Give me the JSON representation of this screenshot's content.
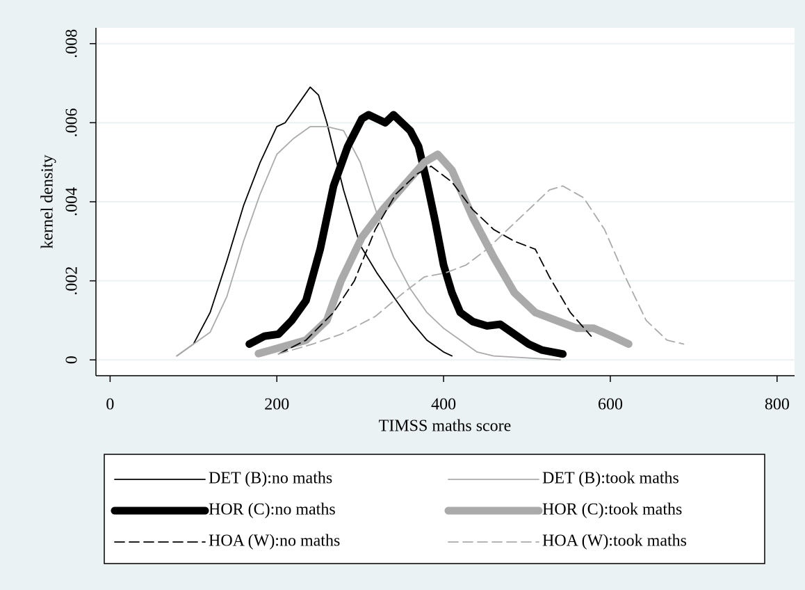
{
  "chart_data": {
    "type": "line",
    "x_label": "TIMSS maths score",
    "y_label": "kernel density",
    "xlim": [
      -17,
      821
    ],
    "ylim": [
      -0.0004,
      0.0084
    ],
    "xticks": [
      0,
      200,
      400,
      600,
      800
    ],
    "yticks": [
      0,
      {
        "value": 0.002,
        "label": ".002"
      },
      {
        "value": 0.004,
        "label": ".004"
      },
      {
        "value": 0.006,
        "label": ".006"
      },
      {
        "value": 0.008,
        "label": ".008"
      }
    ],
    "grid": true,
    "legend": "bottom",
    "series": [
      {
        "name": "DET (B):no maths",
        "color": "#000000",
        "line_style": "solid",
        "line_weight": "thin",
        "x": [
          80,
          100,
          120,
          140,
          160,
          180,
          200,
          210,
          230,
          240,
          250,
          260,
          280,
          300,
          320,
          340,
          360,
          380,
          400,
          410
        ],
        "values": [
          0.0001,
          0.0004,
          0.0012,
          0.0025,
          0.0039,
          0.005,
          0.0059,
          0.006,
          0.0066,
          0.0069,
          0.0067,
          0.006,
          0.0043,
          0.0029,
          0.0022,
          0.0016,
          0.001,
          0.0005,
          0.0002,
          0.0001
        ]
      },
      {
        "name": "DET (B):took maths",
        "color": "#aaaaaa",
        "line_style": "solid",
        "line_weight": "thin",
        "x": [
          80,
          120,
          140,
          160,
          180,
          200,
          220,
          240,
          260,
          280,
          300,
          320,
          340,
          360,
          380,
          400,
          420,
          440,
          460,
          500,
          540
        ],
        "values": [
          0.0001,
          0.0007,
          0.0016,
          0.003,
          0.0042,
          0.0052,
          0.0056,
          0.0059,
          0.0059,
          0.0058,
          0.005,
          0.0037,
          0.0026,
          0.0018,
          0.0012,
          0.0008,
          0.0005,
          0.0002,
          0.0001,
          5e-05,
          0
        ]
      },
      {
        "name": "HOR (C):no maths",
        "color": "#000000",
        "line_style": "solid",
        "line_weight": "thick",
        "x": [
          167,
          185,
          202,
          218,
          235,
          252,
          268,
          285,
          302,
          310,
          320,
          330,
          340,
          350,
          360,
          370,
          380,
          390,
          400,
          410,
          420,
          435,
          452,
          468,
          485,
          502,
          518,
          543
        ],
        "values": [
          0.0004,
          0.0006,
          0.00065,
          0.001,
          0.0015,
          0.0028,
          0.0044,
          0.0054,
          0.0061,
          0.0062,
          0.0061,
          0.006,
          0.0062,
          0.006,
          0.0058,
          0.0054,
          0.0045,
          0.0035,
          0.0024,
          0.0017,
          0.0012,
          0.00097,
          0.00086,
          0.0009,
          0.00065,
          0.0004,
          0.00025,
          0.00015
        ]
      },
      {
        "name": "HOR (C):took maths",
        "color": "#aaaaaa",
        "line_style": "solid",
        "line_weight": "thick",
        "x": [
          178,
          202,
          235,
          260,
          277,
          302,
          327,
          352,
          377,
          393,
          410,
          435,
          460,
          485,
          510,
          535,
          560,
          580,
          602,
          622
        ],
        "values": [
          0.00016,
          0.0003,
          0.0005,
          0.001,
          0.002,
          0.0031,
          0.0038,
          0.0044,
          0.005,
          0.0052,
          0.0048,
          0.0036,
          0.0026,
          0.0017,
          0.0012,
          0.001,
          0.0008,
          0.0008,
          0.0006,
          0.0004
        ]
      },
      {
        "name": "HOA (W):no maths",
        "color": "#000000",
        "line_style": "dashed",
        "line_weight": "thin",
        "x": [
          202,
          235,
          268,
          293,
          318,
          343,
          368,
          385,
          410,
          435,
          460,
          485,
          510,
          527,
          552,
          577
        ],
        "values": [
          0.00015,
          0.0005,
          0.0012,
          0.002,
          0.0033,
          0.0042,
          0.0047,
          0.0049,
          0.0045,
          0.0038,
          0.0033,
          0.003,
          0.0028,
          0.0021,
          0.0012,
          0.0006
        ]
      },
      {
        "name": "HOA (W):took maths",
        "color": "#aaaaaa",
        "line_style": "dashed",
        "line_weight": "thin",
        "x": [
          202,
          243,
          277,
          318,
          352,
          377,
          402,
          427,
          452,
          477,
          502,
          527,
          543,
          568,
          593,
          618,
          643,
          668,
          688
        ],
        "values": [
          0.00015,
          0.0004,
          0.00065,
          0.0011,
          0.0017,
          0.0021,
          0.0022,
          0.0024,
          0.0028,
          0.0033,
          0.0038,
          0.0043,
          0.0044,
          0.0041,
          0.0033,
          0.0021,
          0.001,
          0.0005,
          0.0004
        ]
      }
    ]
  }
}
